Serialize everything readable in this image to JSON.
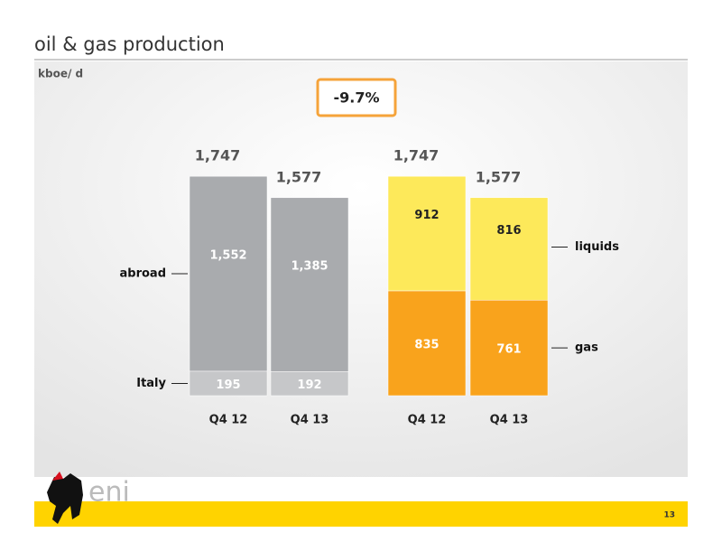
{
  "title": "oil & gas production",
  "unit": "kboe/ d",
  "badge": "-9.7%",
  "logo": "eni",
  "page": "13",
  "chart_data": [
    {
      "type": "stacked-bar",
      "legend": "left",
      "categories": [
        "Q4 12",
        "Q4 13"
      ],
      "series": [
        {
          "name": "Italy",
          "color": "#c6c7c9",
          "values": [
            195,
            192
          ],
          "value_labels": [
            "195",
            "192"
          ]
        },
        {
          "name": "abroad",
          "color": "#a9abae",
          "values": [
            1552,
            1385
          ],
          "value_labels": [
            "1,552",
            "1,385"
          ]
        }
      ],
      "totals": [
        1747,
        1577
      ],
      "total_labels": [
        "1,747",
        "1,577"
      ]
    },
    {
      "type": "stacked-bar",
      "legend": "right",
      "categories": [
        "Q4 12",
        "Q4 13"
      ],
      "series": [
        {
          "name": "gas",
          "color": "#f9a31c",
          "values": [
            835,
            761
          ],
          "value_labels": [
            "835",
            "761"
          ]
        },
        {
          "name": "liquids",
          "color": "#fde95a",
          "values": [
            912,
            816
          ],
          "value_labels": [
            "912",
            "816"
          ]
        }
      ],
      "totals": [
        1747,
        1577
      ],
      "total_labels": [
        "1,747",
        "1,577"
      ]
    }
  ]
}
